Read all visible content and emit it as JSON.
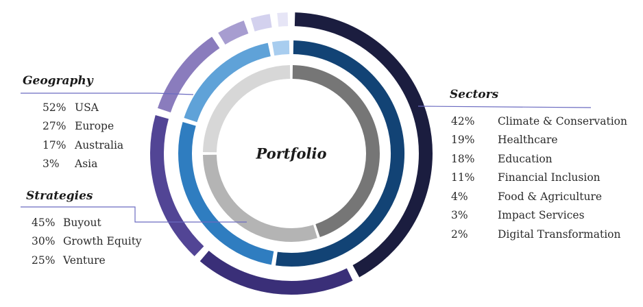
{
  "center_label": "Portfolio",
  "chart_data": {
    "type": "donut",
    "title": "Portfolio",
    "rings": [
      {
        "name": "Sectors",
        "series": [
          {
            "label": "Climate & Conservation",
            "value": 42,
            "color": "#1b1d3f"
          },
          {
            "label": "Healthcare",
            "value": 19,
            "color": "#3a2f78"
          },
          {
            "label": "Education",
            "value": 18,
            "color": "#524595"
          },
          {
            "label": "Financial Inclusion",
            "value": 11,
            "color": "#8a7cbd"
          },
          {
            "label": "Food & Agriculture",
            "value": 4,
            "color": "#a79dd0"
          },
          {
            "label": "Impact Services",
            "value": 3,
            "color": "#d3d1ee"
          },
          {
            "label": "Digital Transformation",
            "value": 2,
            "color": "#e6e5f6"
          }
        ]
      },
      {
        "name": "Geography",
        "series": [
          {
            "label": "USA",
            "value": 52,
            "color": "#124375"
          },
          {
            "label": "Europe",
            "value": 27,
            "color": "#2f7dc0"
          },
          {
            "label": "Australia",
            "value": 17,
            "color": "#5fa2d8"
          },
          {
            "label": "Asia",
            "value": 3,
            "color": "#a8cdef"
          }
        ]
      },
      {
        "name": "Strategies",
        "series": [
          {
            "label": "Buyout",
            "value": 45,
            "color": "#767676"
          },
          {
            "label": "Growth Equity",
            "value": 30,
            "color": "#b4b4b4"
          },
          {
            "label": "Venture",
            "value": 25,
            "color": "#d7d7d7"
          }
        ]
      }
    ]
  },
  "legends": {
    "geography": {
      "title": "Geography",
      "items": [
        {
          "pct": "52%",
          "label": "USA"
        },
        {
          "pct": "27%",
          "label": "Europe"
        },
        {
          "pct": "17%",
          "label": "Australia"
        },
        {
          "pct": "3%",
          "label": "Asia"
        }
      ]
    },
    "strategies": {
      "title": "Strategies",
      "items": [
        {
          "pct": "45%",
          "label": "Buyout"
        },
        {
          "pct": "30%",
          "label": "Growth Equity"
        },
        {
          "pct": "25%",
          "label": "Venture"
        }
      ]
    },
    "sectors": {
      "title": "Sectors",
      "items": [
        {
          "pct": "42%",
          "label": "Climate & Conservation"
        },
        {
          "pct": "19%",
          "label": "Healthcare"
        },
        {
          "pct": "18%",
          "label": "Education"
        },
        {
          "pct": "11%",
          "label": "Financial Inclusion"
        },
        {
          "pct": "4%",
          "label": "Food & Agriculture"
        },
        {
          "pct": "3%",
          "label": "Impact Services"
        },
        {
          "pct": "2%",
          "label": "Digital Transformation"
        }
      ]
    }
  },
  "connector_color": "#6a6ac0"
}
